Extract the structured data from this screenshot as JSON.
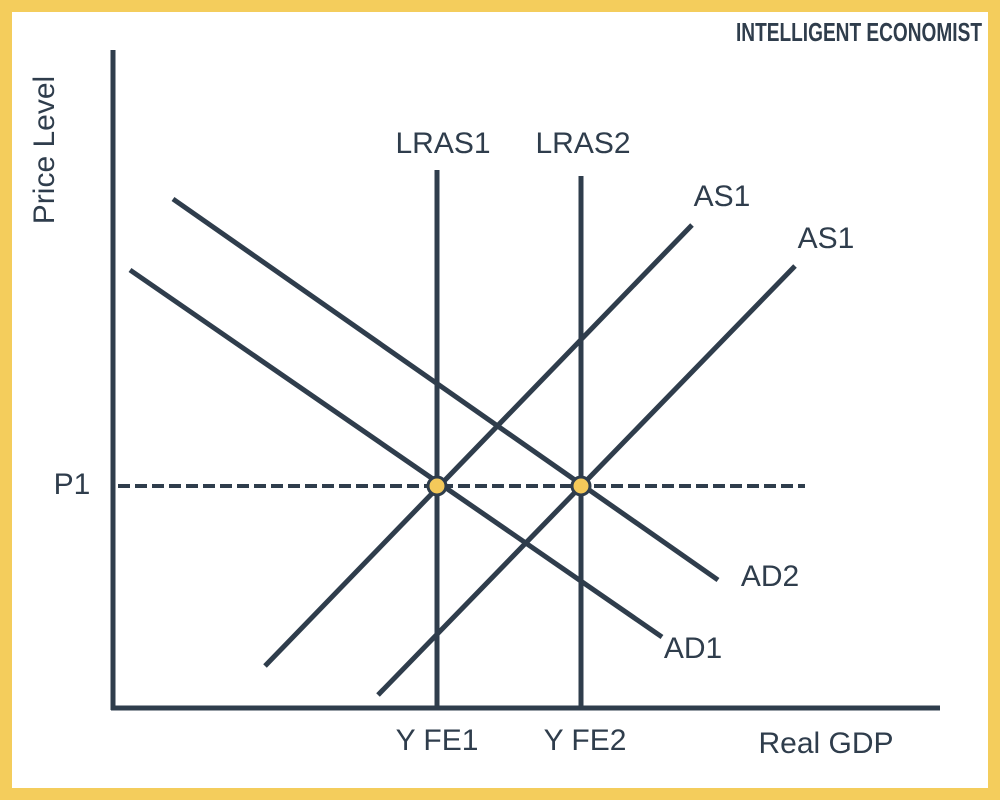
{
  "brand": "INTELLIGENT ECONOMIST",
  "axes": {
    "y_label": "Price Level",
    "x_label": "Real GDP"
  },
  "curves": [
    {
      "label": "LRAS1"
    },
    {
      "label": "LRAS2"
    },
    {
      "label": "AS1"
    },
    {
      "label": "AS1"
    },
    {
      "label": "AD2"
    },
    {
      "label": "AD1"
    }
  ],
  "price_label": "P1",
  "output_labels": [
    "Y FE1",
    "Y FE2"
  ]
}
